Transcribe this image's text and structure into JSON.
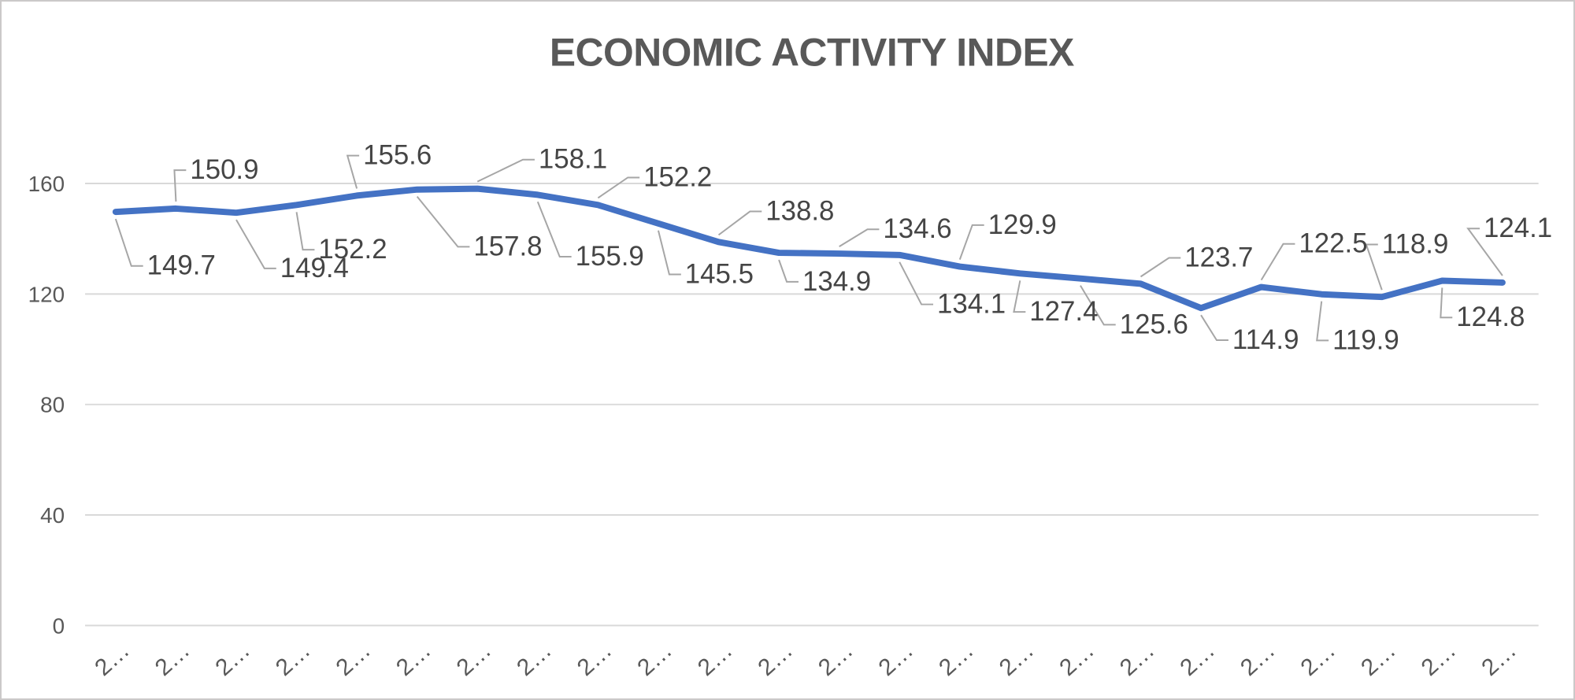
{
  "chart_data": {
    "type": "line",
    "title": "ECONOMIC ACTIVITY INDEX",
    "categories": [
      "2…",
      "2…",
      "2…",
      "2…",
      "2…",
      "2…",
      "2…",
      "2…",
      "2…",
      "2…",
      "2…",
      "2…",
      "2…",
      "2…",
      "2…",
      "2…",
      "2…",
      "2…",
      "2…",
      "2…",
      "2…",
      "2…",
      "2…",
      "2…"
    ],
    "values": [
      149.7,
      150.9,
      149.4,
      152.2,
      155.6,
      157.8,
      158.1,
      155.9,
      152.2,
      145.5,
      138.8,
      134.9,
      134.6,
      134.1,
      129.9,
      127.4,
      125.6,
      123.7,
      114.9,
      122.5,
      119.9,
      118.9,
      124.8,
      124.1
    ],
    "data_labels": [
      "149.7",
      "150.9",
      "149.4",
      "152.2",
      "155.6",
      "157.8",
      "158.1",
      "155.9",
      "152.2",
      "145.5",
      "138.8",
      "134.9",
      "134.6",
      "134.1",
      "129.9",
      "127.4",
      "125.6",
      "123.7",
      "114.9",
      "122.5",
      "119.9",
      "118.9",
      "124.8",
      "124.1"
    ],
    "y_ticks": [
      "0",
      "40",
      "80",
      "120",
      "160"
    ],
    "y_tick_values": [
      0,
      40,
      80,
      120,
      160
    ],
    "ylim": [
      0,
      176
    ],
    "xlabel": "",
    "ylabel": "",
    "grid": true,
    "legend": "none",
    "colors": {
      "line": "#4472C4",
      "grid": "#D9D9D9",
      "leader": "#A6A6A6",
      "data_label": "#454545",
      "axis_label": "#595959",
      "title": "#595959",
      "background": "#FFFFFF",
      "border": "#CBC9C9"
    }
  }
}
